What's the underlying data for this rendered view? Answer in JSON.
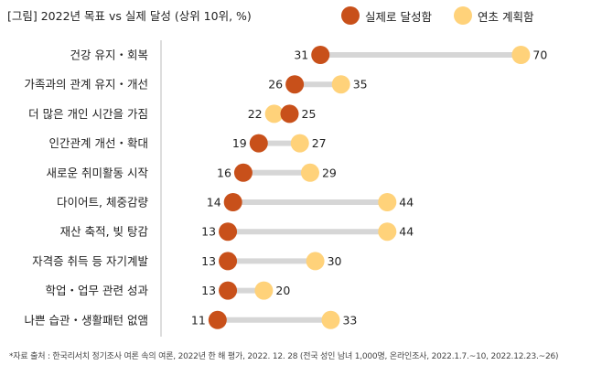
{
  "title": "[그림] 2022년 목표 vs 실제 달성 (상위 10위, %)",
  "source": "*자료 출처 : 한국리서치 정기조사 여론 속의 여론, 2022년 한 해 평가, 2022. 12. 28 (전국 성인 남녀 1,000명, 온라인조사, 2022.1.7.~10, 2022.12.23.~26)",
  "chart_data": {
    "type": "dumbbell",
    "title": "[그림] 2022년 목표 vs 실제 달성 (상위 10위, %)",
    "categories": [
      "건강 유지・회복",
      "가족과의 관계 유지・개선",
      "더 많은 개인 시간을 가짐",
      "인간관계 개선・확대",
      "새로운 취미활동 시작",
      "다이어트, 체중감량",
      "재산 축적, 빚 탕감",
      "자격증 취득 등 자기계발",
      "학업・업무 관련 성과",
      "나쁜 습관・생활패턴 없앰"
    ],
    "series": [
      {
        "name": "실제로 달성함",
        "color": "#c8501a",
        "values": [
          31,
          26,
          25,
          19,
          16,
          14,
          13,
          13,
          13,
          11
        ]
      },
      {
        "name": "연초 계획함",
        "color": "#ffd27a",
        "values": [
          70,
          35,
          22,
          27,
          29,
          44,
          44,
          30,
          20,
          33
        ]
      }
    ],
    "xlim": [
      0,
      70
    ],
    "xlabel": "",
    "ylabel": "",
    "legend": "top-right"
  }
}
